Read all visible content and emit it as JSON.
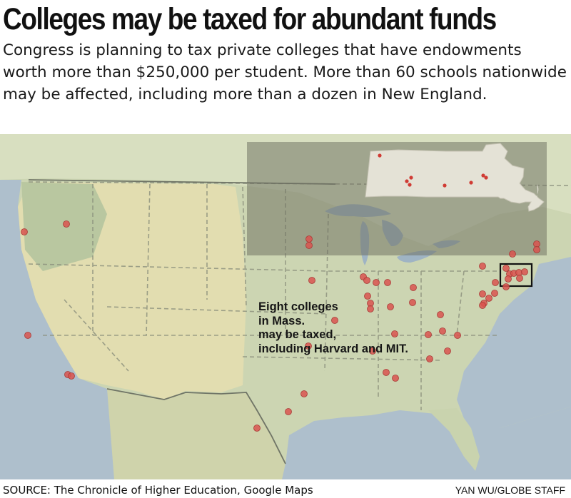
{
  "headline": "Colleges may be taxed for abundant funds",
  "dek": "Congress is planning to tax private colleges that have endowments worth more than $250,000 per student. More than 60 schools nationwide may be affected, including more than a dozen in New England.",
  "map": {
    "callout": {
      "line1": "Eight colleges",
      "line2": "in Mass.",
      "line3": "may be taxed,",
      "line4": "including Harvard and MIT."
    },
    "marker_color": "#d9534f",
    "inset_land_color": "#e4e2d6"
  },
  "source": "SOURCE: The Chronicle of Higher Education, Google Maps",
  "credit": "YAN WU/GLOBE STAFF"
}
